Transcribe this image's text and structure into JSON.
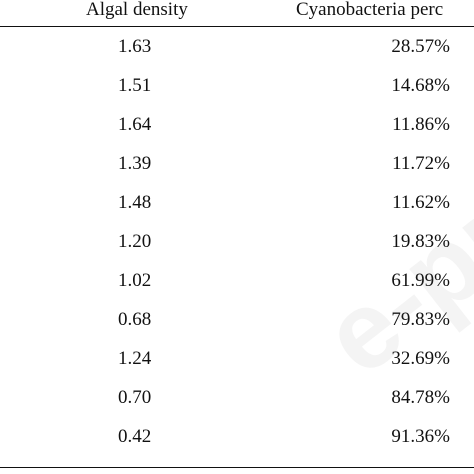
{
  "table": {
    "headers": {
      "algal_density": "Algal density",
      "cyanobacteria_percent": "Cyanobacteria perc"
    },
    "rows": [
      {
        "algal_density": "1.63",
        "cyanobacteria_percent": "28.57%"
      },
      {
        "algal_density": "1.51",
        "cyanobacteria_percent": "14.68%"
      },
      {
        "algal_density": "1.64",
        "cyanobacteria_percent": "11.86%"
      },
      {
        "algal_density": "1.39",
        "cyanobacteria_percent": "11.72%"
      },
      {
        "algal_density": "1.48",
        "cyanobacteria_percent": "11.62%"
      },
      {
        "algal_density": "1.20",
        "cyanobacteria_percent": "19.83%"
      },
      {
        "algal_density": "1.02",
        "cyanobacteria_percent": "61.99%"
      },
      {
        "algal_density": "0.68",
        "cyanobacteria_percent": "79.83%"
      },
      {
        "algal_density": "1.24",
        "cyanobacteria_percent": "32.69%"
      },
      {
        "algal_density": "0.70",
        "cyanobacteria_percent": "84.78%"
      },
      {
        "algal_density": "0.42",
        "cyanobacteria_percent": "91.36%"
      }
    ]
  },
  "watermark": {
    "text": "e-pr"
  }
}
